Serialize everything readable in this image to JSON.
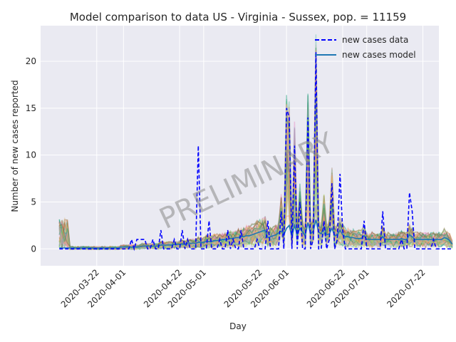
{
  "chart_data": {
    "type": "line",
    "title": "Model comparison to data US - Virginia - Sussex, pop. = 11159",
    "xlabel": "Day",
    "ylabel": "Number of new cases reported",
    "x_start": "2020-03-08",
    "x_end": "2020-07-23",
    "xlim": [
      "2020-03-01",
      "2020-07-28"
    ],
    "ylim": [
      -1.8,
      23.8
    ],
    "grid": true,
    "legend_position": "top-right",
    "watermark": "PRELIMINARY",
    "x_ticks": [
      "2020-03-22",
      "2020-04-01",
      "2020-04-22",
      "2020-05-01",
      "2020-05-22",
      "2020-06-01",
      "2020-06-22",
      "2020-07-01",
      "2020-07-22"
    ],
    "y_ticks": [
      0,
      5,
      10,
      15,
      20
    ],
    "ensemble_colors": [
      "#f4a582",
      "#66c2a5",
      "#8da0cb",
      "#e78ac3",
      "#a6d854",
      "#b3b3b3",
      "#e5c494",
      "#fc8d62",
      "#8c6d31",
      "#1b9e77"
    ],
    "series": [
      {
        "name": "new cases data",
        "style": "dashed",
        "color": "#0000ff",
        "values": [
          0,
          0,
          0,
          0,
          0,
          0,
          0,
          0,
          0,
          0,
          0,
          0,
          0,
          0,
          0,
          0,
          0,
          0,
          0,
          0,
          0,
          0,
          0,
          0,
          0,
          0,
          0,
          1,
          0,
          1,
          1,
          1,
          1,
          0,
          0,
          1,
          0,
          0,
          2,
          0,
          0,
          0,
          0,
          1,
          0,
          0,
          2,
          0,
          1,
          0,
          0,
          0,
          11,
          0,
          0,
          0,
          3,
          0,
          0,
          0,
          1,
          0,
          0,
          2,
          0,
          1,
          0,
          0,
          2,
          0,
          0,
          0,
          0,
          0,
          1,
          0,
          0,
          0,
          3,
          0,
          0,
          0,
          0,
          4,
          0,
          15,
          14,
          0,
          11,
          0,
          5,
          0,
          0,
          14,
          0,
          1,
          21,
          0,
          0,
          3,
          0,
          1,
          7,
          0,
          1,
          8,
          2,
          0,
          0,
          0,
          0,
          0,
          0,
          0,
          3,
          0,
          0,
          0,
          0,
          0,
          0,
          4,
          0,
          0,
          0,
          0,
          0,
          0,
          1,
          0,
          0,
          6,
          4,
          0,
          0,
          0,
          0,
          0,
          0,
          0,
          1,
          0,
          0,
          0,
          0,
          0,
          0,
          0
        ]
      },
      {
        "name": "new cases model",
        "style": "solid",
        "color": "#1f77b4",
        "values": [
          0.1,
          0.1,
          0.1,
          0.1,
          0.1,
          0.1,
          0.1,
          0.1,
          0.1,
          0.1,
          0.1,
          0.1,
          0.1,
          0.1,
          0.1,
          0.1,
          0.1,
          0.1,
          0.1,
          0.1,
          0.1,
          0.1,
          0.1,
          0.2,
          0.2,
          0.2,
          0.2,
          0.2,
          0.2,
          0.2,
          0.2,
          0.3,
          0.3,
          0.3,
          0.3,
          0.3,
          0.3,
          0.3,
          0.4,
          0.4,
          0.4,
          0.4,
          0.4,
          0.5,
          0.5,
          0.5,
          0.5,
          0.5,
          0.6,
          0.6,
          0.6,
          0.6,
          0.7,
          0.7,
          0.7,
          0.8,
          0.8,
          0.8,
          0.9,
          0.9,
          0.9,
          1,
          1,
          1,
          1.1,
          1.1,
          1.2,
          1.2,
          1.3,
          1.3,
          1.4,
          1.4,
          1.5,
          1.6,
          1.7,
          1.8,
          1.9,
          2,
          1.2,
          1.3,
          1.4,
          1.5,
          1.7,
          1.9,
          1.5,
          2.2,
          2.5,
          1.3,
          2.5,
          1.5,
          2.2,
          1.8,
          1.4,
          2.8,
          1.6,
          1.9,
          3.1,
          1.8,
          1.6,
          2.4,
          1.5,
          1.6,
          2.2,
          1.4,
          1.5,
          2,
          1.5,
          1.3,
          1.3,
          1.2,
          1.2,
          1.1,
          1.1,
          1.1,
          1.4,
          1,
          1,
          1,
          1,
          1,
          1,
          1.3,
          1,
          1,
          1,
          1,
          1,
          1,
          1.1,
          1,
          1,
          1.5,
          1.3,
          1,
          1,
          1,
          1,
          1,
          1,
          1,
          1,
          1,
          1,
          1,
          1.2,
          1.1,
          0.9,
          0.5
        ]
      }
    ]
  }
}
